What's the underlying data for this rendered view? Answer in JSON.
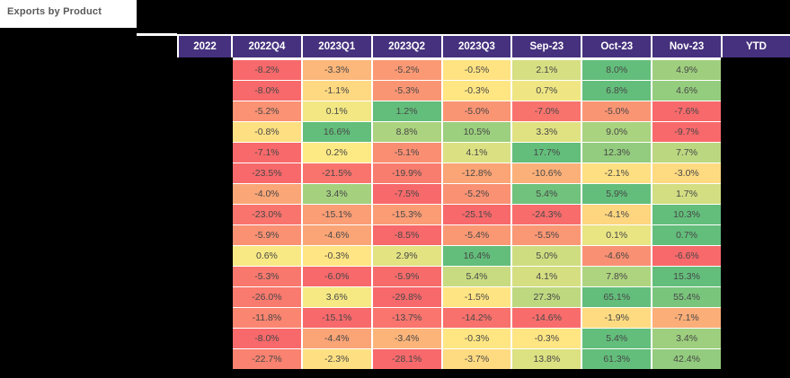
{
  "title": "Exports by Product",
  "chart_data": {
    "type": "heatmap",
    "title": "Exports by Product",
    "columns": [
      "2022",
      "2022Q4",
      "2023Q1",
      "2023Q2",
      "2023Q3",
      "Sep-23",
      "Oct-23",
      "Nov-23",
      "YTD"
    ],
    "redacted_columns": [
      "2022",
      "YTD"
    ],
    "row_labels_visible": false,
    "unit": "%",
    "value_format": "one_decimal_percent",
    "legend_position": "none",
    "grid_on": true,
    "header_bg": "#45317D",
    "header_text_color": "#FFFFFF",
    "gridline_color": "#FFFFFF",
    "redaction_color": "#000000",
    "color_scale": {
      "scope": "per-row",
      "min_color": "#F8696B",
      "mid_color": "#FFEB84",
      "max_color": "#63BE7B",
      "midpoint_value": 0
    },
    "rows": [
      {
        "values": [
          null,
          -8.2,
          -3.3,
          -5.2,
          -0.5,
          2.1,
          8.0,
          4.9,
          null
        ]
      },
      {
        "values": [
          null,
          -8.0,
          -1.1,
          -5.3,
          -0.3,
          0.7,
          6.8,
          4.6,
          null
        ]
      },
      {
        "values": [
          null,
          -5.2,
          0.1,
          1.2,
          -5.0,
          -7.0,
          -5.0,
          -7.6,
          null
        ]
      },
      {
        "values": [
          null,
          -0.8,
          16.6,
          8.8,
          10.5,
          3.3,
          9.0,
          -9.7,
          null
        ]
      },
      {
        "values": [
          null,
          -7.1,
          0.2,
          -5.1,
          4.1,
          17.7,
          12.3,
          7.7,
          null
        ]
      },
      {
        "values": [
          null,
          -23.5,
          -21.5,
          -19.9,
          -12.8,
          -10.6,
          -2.1,
          -3.0,
          null
        ]
      },
      {
        "values": [
          null,
          -4.0,
          3.4,
          -7.5,
          -5.2,
          5.4,
          5.9,
          1.7,
          null
        ]
      },
      {
        "values": [
          null,
          -23.0,
          -15.1,
          -15.3,
          -25.1,
          -24.3,
          -4.1,
          10.3,
          null
        ]
      },
      {
        "values": [
          null,
          -5.9,
          -4.6,
          -8.5,
          -5.4,
          -5.5,
          0.1,
          0.7,
          null
        ]
      },
      {
        "values": [
          null,
          0.6,
          -0.3,
          2.9,
          16.4,
          5.0,
          -4.6,
          -6.6,
          null
        ]
      },
      {
        "values": [
          null,
          -5.3,
          -6.0,
          -5.9,
          5.4,
          4.1,
          7.8,
          15.3,
          null
        ]
      },
      {
        "values": [
          null,
          -26.0,
          3.6,
          -29.8,
          -1.5,
          27.3,
          65.1,
          55.4,
          null
        ]
      },
      {
        "values": [
          null,
          -11.8,
          -15.1,
          -13.7,
          -14.2,
          -14.6,
          -1.9,
          -7.1,
          null
        ]
      },
      {
        "values": [
          null,
          -8.0,
          -4.4,
          -3.4,
          -0.3,
          -0.3,
          5.4,
          3.4,
          null
        ]
      },
      {
        "values": [
          null,
          -22.7,
          -2.3,
          -28.1,
          -3.7,
          13.8,
          61.3,
          42.4,
          null
        ]
      }
    ]
  }
}
